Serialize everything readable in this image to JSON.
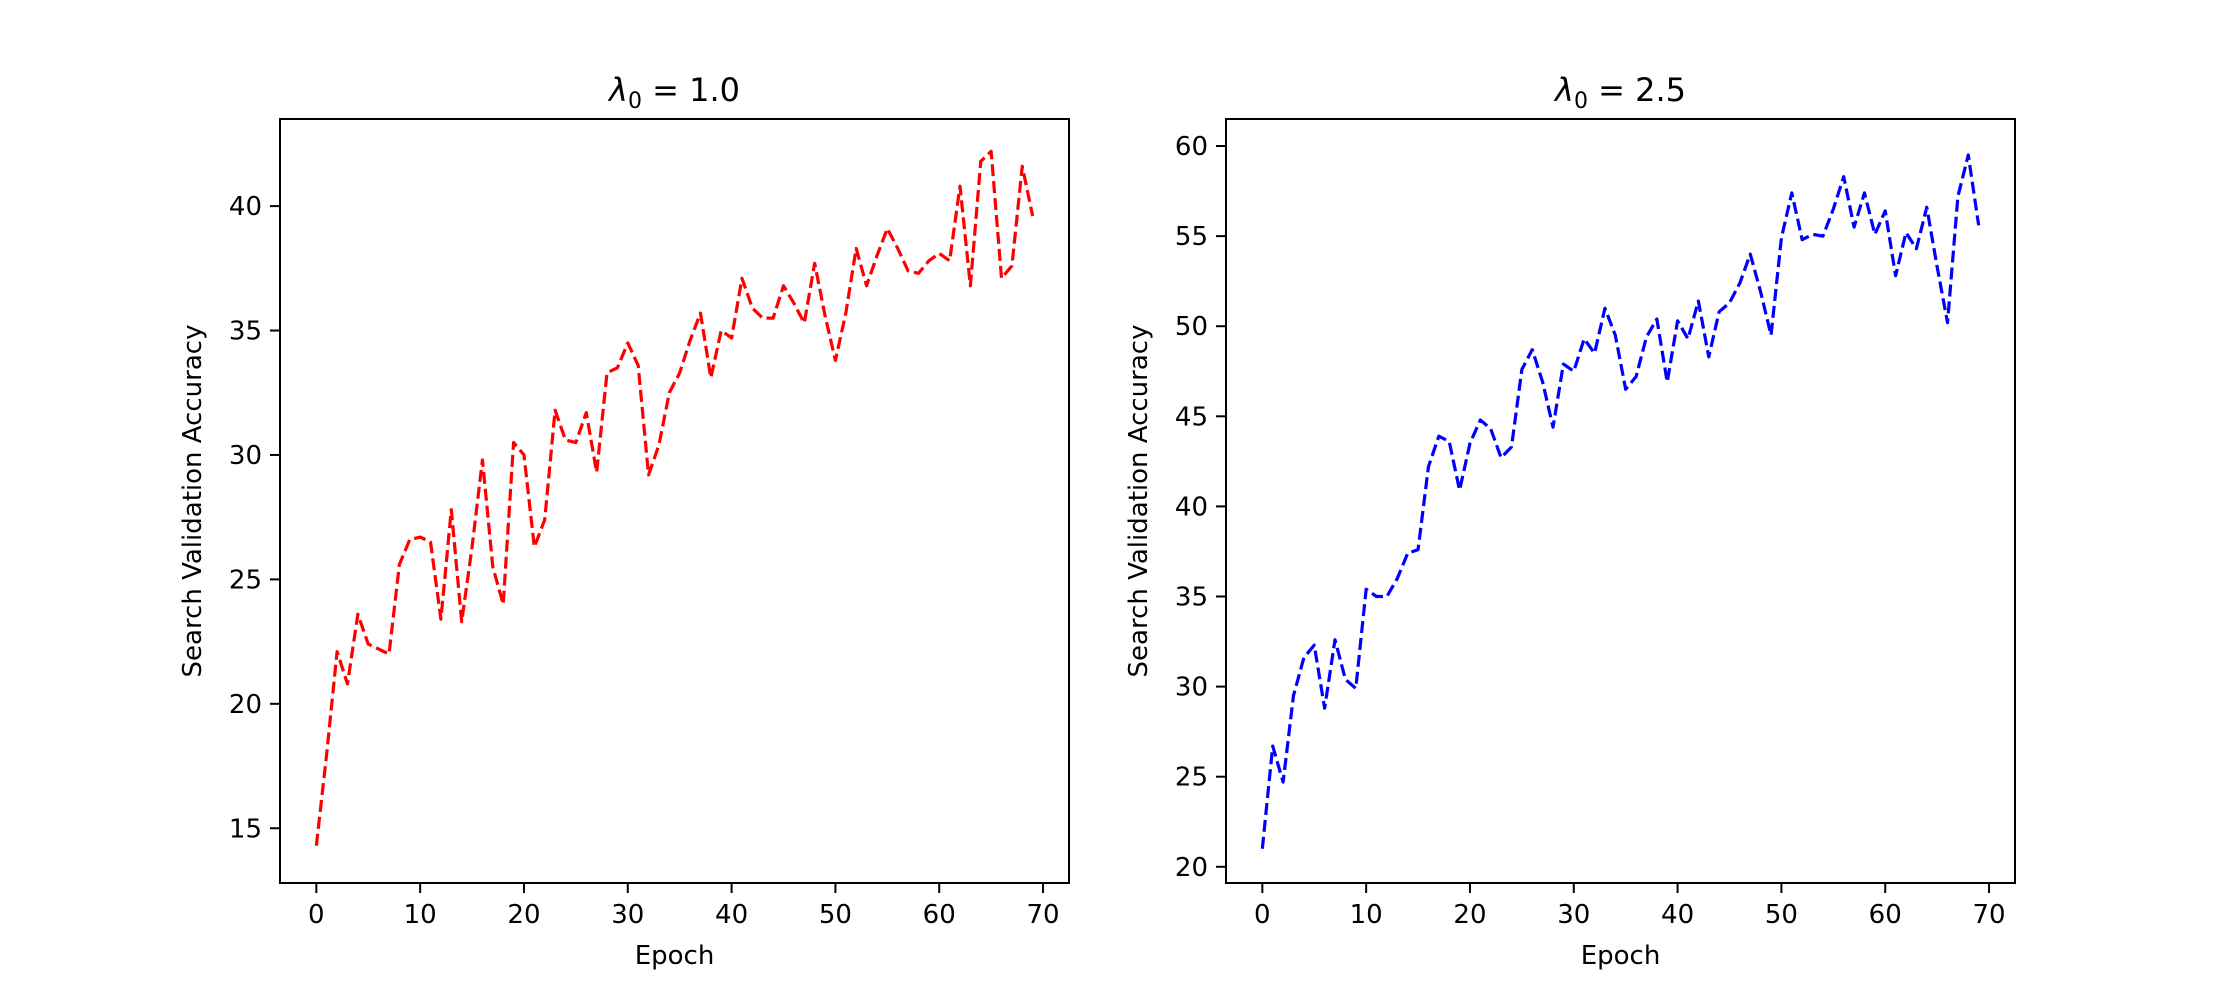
{
  "chart_data": [
    {
      "type": "line",
      "title": "λ0 = 1.0",
      "title_symbol": "λ",
      "title_subscript": "0",
      "title_rest": " = 1.0",
      "xlabel": "Epoch",
      "ylabel": "Search Validation Accuracy",
      "xlim": [
        -3.5,
        72.5
      ],
      "ylim": [
        12.8,
        43.5
      ],
      "xticks": [
        0,
        10,
        20,
        30,
        40,
        50,
        60,
        70
      ],
      "yticks": [
        15,
        20,
        25,
        30,
        35,
        40
      ],
      "grid": false,
      "series": [
        {
          "name": "λ0 = 1.0",
          "color": "#ff0000",
          "line_style": "dashed",
          "x": [
            0,
            1,
            2,
            3,
            4,
            5,
            6,
            7,
            8,
            9,
            10,
            11,
            12,
            13,
            14,
            15,
            16,
            17,
            18,
            19,
            20,
            21,
            22,
            23,
            24,
            25,
            26,
            27,
            28,
            29,
            30,
            31,
            32,
            33,
            34,
            35,
            36,
            37,
            38,
            39,
            40,
            41,
            42,
            43,
            44,
            45,
            46,
            47,
            48,
            49,
            50,
            51,
            52,
            53,
            54,
            55,
            56,
            57,
            58,
            59,
            60,
            61,
            62,
            63,
            64,
            65,
            66,
            67,
            68,
            69
          ],
          "y": [
            14.3,
            18.0,
            22.1,
            20.8,
            23.6,
            22.4,
            22.2,
            22.0,
            25.6,
            26.6,
            26.7,
            26.5,
            23.4,
            27.8,
            23.3,
            26.3,
            29.8,
            25.5,
            24.0,
            30.5,
            30.0,
            26.3,
            27.4,
            31.8,
            30.6,
            30.5,
            31.7,
            29.3,
            33.3,
            33.5,
            34.5,
            33.6,
            29.2,
            30.4,
            32.5,
            33.3,
            34.6,
            35.7,
            33.1,
            35.0,
            34.7,
            37.1,
            35.9,
            35.5,
            35.5,
            36.8,
            36.1,
            35.3,
            37.7,
            35.6,
            33.8,
            35.7,
            38.3,
            36.8,
            38.0,
            39.1,
            38.3,
            37.4,
            37.3,
            37.8,
            38.1,
            37.8,
            40.8,
            36.8,
            41.8,
            42.2,
            37.1,
            37.6,
            41.6,
            39.6
          ]
        }
      ]
    },
    {
      "type": "line",
      "title": "λ0 = 2.5",
      "title_symbol": "λ",
      "title_subscript": "0",
      "title_rest": " = 2.5",
      "xlabel": "Epoch",
      "ylabel": "Search Validation Accuracy",
      "xlim": [
        -3.5,
        72.5
      ],
      "ylim": [
        19.1,
        61.5
      ],
      "xticks": [
        0,
        10,
        20,
        30,
        40,
        50,
        60,
        70
      ],
      "yticks": [
        20,
        25,
        30,
        35,
        40,
        45,
        50,
        55,
        60
      ],
      "grid": false,
      "series": [
        {
          "name": "λ0 = 2.5",
          "color": "#0000ff",
          "line_style": "dashed",
          "x": [
            0,
            1,
            2,
            3,
            4,
            5,
            6,
            7,
            8,
            9,
            10,
            11,
            12,
            13,
            14,
            15,
            16,
            17,
            18,
            19,
            20,
            21,
            22,
            23,
            24,
            25,
            26,
            27,
            28,
            29,
            30,
            31,
            32,
            33,
            34,
            35,
            36,
            37,
            38,
            39,
            40,
            41,
            42,
            43,
            44,
            45,
            46,
            47,
            48,
            49,
            50,
            51,
            52,
            53,
            54,
            55,
            56,
            57,
            58,
            59,
            60,
            61,
            62,
            63,
            64,
            65,
            66,
            67,
            68,
            69
          ],
          "y": [
            21.0,
            26.7,
            24.7,
            29.5,
            31.6,
            32.3,
            28.8,
            32.6,
            30.4,
            29.9,
            35.4,
            35.0,
            35.0,
            36.0,
            37.4,
            37.6,
            42.2,
            43.9,
            43.6,
            40.9,
            43.5,
            44.8,
            44.3,
            42.7,
            43.3,
            47.6,
            48.7,
            46.9,
            44.4,
            47.9,
            47.5,
            49.3,
            48.5,
            51.0,
            49.5,
            46.5,
            47.2,
            49.4,
            50.4,
            46.9,
            50.3,
            49.3,
            51.4,
            48.3,
            50.8,
            51.3,
            52.4,
            54.0,
            51.9,
            49.5,
            54.9,
            57.4,
            54.8,
            55.1,
            55.0,
            56.5,
            58.3,
            55.5,
            57.4,
            55.1,
            56.4,
            52.8,
            55.2,
            54.3,
            56.6,
            53.3,
            50.2,
            57.2,
            59.5,
            55.6
          ]
        }
      ]
    }
  ]
}
